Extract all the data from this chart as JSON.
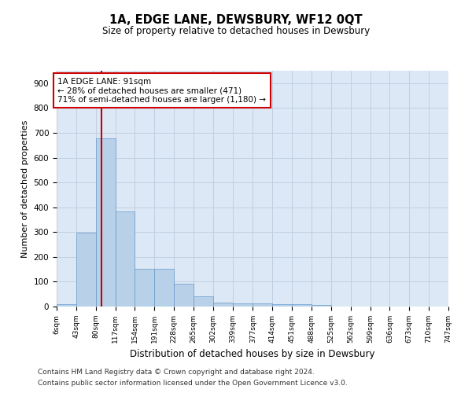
{
  "title": "1A, EDGE LANE, DEWSBURY, WF12 0QT",
  "subtitle": "Size of property relative to detached houses in Dewsbury",
  "xlabel": "Distribution of detached houses by size in Dewsbury",
  "ylabel": "Number of detached properties",
  "bar_color": "#b8d0e8",
  "bar_edge_color": "#6699cc",
  "background_color": "#ffffff",
  "plot_bg_color": "#dce8f5",
  "grid_color": "#c0d0e0",
  "red_line_x": 91,
  "annotation_text": "1A EDGE LANE: 91sqm\n← 28% of detached houses are smaller (471)\n71% of semi-detached houses are larger (1,180) →",
  "annotation_box_color": "#ffffff",
  "annotation_box_edge": "#cc0000",
  "annotation_text_color": "#000000",
  "footer_line1": "Contains HM Land Registry data © Crown copyright and database right 2024.",
  "footer_line2": "Contains public sector information licensed under the Open Government Licence v3.0.",
  "bin_edges": [
    6,
    43,
    80,
    117,
    154,
    191,
    228,
    265,
    302,
    339,
    377,
    414,
    451,
    488,
    525,
    562,
    599,
    636,
    673,
    710,
    747
  ],
  "bin_counts": [
    8,
    298,
    678,
    382,
    152,
    153,
    91,
    40,
    16,
    14,
    14,
    11,
    9,
    5,
    0,
    0,
    0,
    0,
    0,
    0
  ],
  "ylim": [
    0,
    950
  ],
  "yticks": [
    0,
    100,
    200,
    300,
    400,
    500,
    600,
    700,
    800,
    900
  ]
}
